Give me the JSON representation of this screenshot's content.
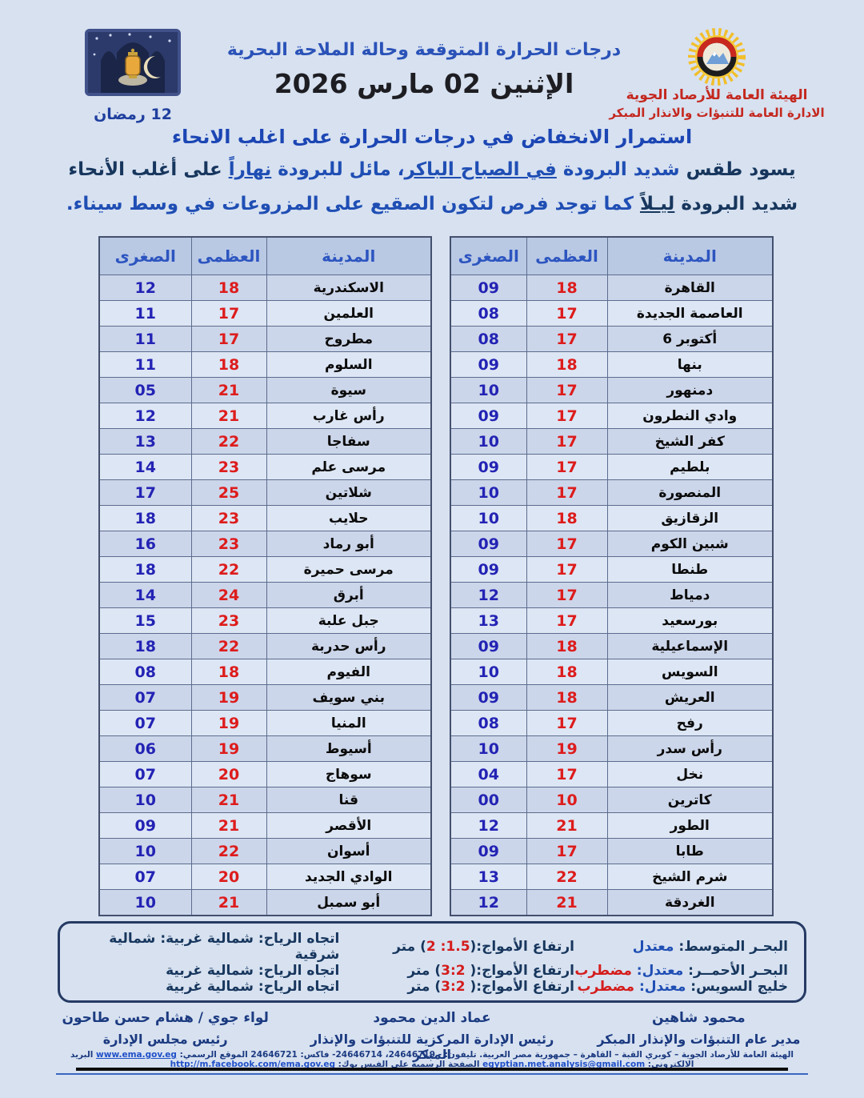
{
  "header": {
    "org_line1": "الهيئة العامة للأرصاد الجوية",
    "org_line2": "الادارة العامة للتنبؤات والانذار المبكر",
    "title": "درجات الحرارة المتوقعة وحالة الملاحة البحرية",
    "date": "الإثنين 02 مارس 2026",
    "hijri": "12 رمضان"
  },
  "summary": {
    "headline": "استمرار الانخفاض في درجات الحرارة على اغلب الانحاء",
    "line1_segments": [
      {
        "t": "يسود طقس ",
        "c": "navy"
      },
      {
        "t": "شديد البرودة",
        "c": "blue"
      },
      {
        "t": " ",
        "c": "blue"
      },
      {
        "t": "في الصباح الباكر",
        "c": "blue",
        "u": true
      },
      {
        "t": "، مائل للبرودة ",
        "c": "blue"
      },
      {
        "t": "نهاراً",
        "c": "blue",
        "u": true
      },
      {
        "t": " على أغلب الأنحاء",
        "c": "navy"
      }
    ],
    "line2_segments": [
      {
        "t": "شديد البرودة ",
        "c": "navy"
      },
      {
        "t": "ليـلاً",
        "c": "navy",
        "u": true
      },
      {
        "t": " كما توجد فرص لتكون الصقيع على المزروعات في وسط سيناء.",
        "c": "blue"
      }
    ]
  },
  "tables": {
    "headers": {
      "city": "المدينة",
      "max": "العظمى",
      "min": "الصغرى"
    },
    "right": {
      "rows": [
        {
          "city": "القاهرة",
          "max": "18",
          "min": "09"
        },
        {
          "city": "العاصمة الجديدة",
          "max": "17",
          "min": "08"
        },
        {
          "city": "أكتوبر 6",
          "max": "17",
          "min": "08"
        },
        {
          "city": "بنها",
          "max": "18",
          "min": "09"
        },
        {
          "city": "دمنهور",
          "max": "17",
          "min": "10"
        },
        {
          "city": "وادي النطرون",
          "max": "17",
          "min": "09"
        },
        {
          "city": "كفر الشيخ",
          "max": "17",
          "min": "10"
        },
        {
          "city": "بلطيم",
          "max": "17",
          "min": "09"
        },
        {
          "city": "المنصورة",
          "max": "17",
          "min": "10"
        },
        {
          "city": "الزقازيق",
          "max": "18",
          "min": "10"
        },
        {
          "city": "شبين الكوم",
          "max": "17",
          "min": "09"
        },
        {
          "city": "طنطا",
          "max": "17",
          "min": "09"
        },
        {
          "city": "دمياط",
          "max": "17",
          "min": "12"
        },
        {
          "city": "بورسعيد",
          "max": "17",
          "min": "13"
        },
        {
          "city": "الإسماعيلية",
          "max": "18",
          "min": "09"
        },
        {
          "city": "السويس",
          "max": "18",
          "min": "10"
        },
        {
          "city": "العريش",
          "max": "18",
          "min": "09"
        },
        {
          "city": "رفح",
          "max": "17",
          "min": "08"
        },
        {
          "city": "رأس سدر",
          "max": "19",
          "min": "10"
        },
        {
          "city": "نخل",
          "max": "17",
          "min": "04"
        },
        {
          "city": "كاترين",
          "max": "10",
          "min": "00"
        },
        {
          "city": "الطور",
          "max": "21",
          "min": "12"
        },
        {
          "city": "طابا",
          "max": "17",
          "min": "09"
        },
        {
          "city": "شرم الشيخ",
          "max": "22",
          "min": "13"
        },
        {
          "city": "الغردقة",
          "max": "21",
          "min": "12"
        }
      ]
    },
    "left": {
      "rows": [
        {
          "city": "الاسكندرية",
          "max": "18",
          "min": "12"
        },
        {
          "city": "العلمين",
          "max": "17",
          "min": "11"
        },
        {
          "city": "مطروح",
          "max": "17",
          "min": "11"
        },
        {
          "city": "السلوم",
          "max": "18",
          "min": "11"
        },
        {
          "city": "سيوة",
          "max": "21",
          "min": "05"
        },
        {
          "city": "رأس غارب",
          "max": "21",
          "min": "12"
        },
        {
          "city": "سفاجا",
          "max": "22",
          "min": "13"
        },
        {
          "city": "مرسى علم",
          "max": "23",
          "min": "14"
        },
        {
          "city": "شلاتين",
          "max": "25",
          "min": "17"
        },
        {
          "city": "حلايب",
          "max": "23",
          "min": "18"
        },
        {
          "city": "أبو رماد",
          "max": "23",
          "min": "16"
        },
        {
          "city": "مرسى حميرة",
          "max": "22",
          "min": "18"
        },
        {
          "city": "أبرق",
          "max": "24",
          "min": "14"
        },
        {
          "city": "جبل علبة",
          "max": "23",
          "min": "15"
        },
        {
          "city": "رأس حدربة",
          "max": "22",
          "min": "18"
        },
        {
          "city": "الفيوم",
          "max": "18",
          "min": "08"
        },
        {
          "city": "بني سويف",
          "max": "19",
          "min": "07"
        },
        {
          "city": "المنيا",
          "max": "19",
          "min": "07"
        },
        {
          "city": "أسيوط",
          "max": "19",
          "min": "06"
        },
        {
          "city": "سوهاج",
          "max": "20",
          "min": "07"
        },
        {
          "city": "قنا",
          "max": "21",
          "min": "10"
        },
        {
          "city": "الأقصر",
          "max": "21",
          "min": "09"
        },
        {
          "city": "أسوان",
          "max": "22",
          "min": "10"
        },
        {
          "city": "الوادي الجديد",
          "max": "20",
          "min": "07"
        },
        {
          "city": "أبو سمبل",
          "max": "21",
          "min": "10"
        }
      ]
    }
  },
  "marine": {
    "rows": [
      {
        "sea": "البحـر المتوسط: ",
        "states": [
          {
            "t": "معتدل",
            "c": "blue"
          }
        ],
        "waves_prefix": "ارتفاع الأمواج:(",
        "waves_num": "1.5: 2",
        "waves_suffix": ") متر",
        "wind": "اتجاه الرياح: شمالية غربية: شمالية شرقية"
      },
      {
        "sea": "البحـر الأحمــر: ",
        "states": [
          {
            "t": "معتدل:",
            "c": "blue"
          },
          {
            "t": " مضطرب",
            "c": "red"
          }
        ],
        "waves_prefix": "ارتفاع الأمواج:( ",
        "waves_num": "3:2",
        "waves_suffix": ") متر",
        "wind": "اتجاه الرياح: شمالية غربية"
      },
      {
        "sea": "خليج السويس: ",
        "states": [
          {
            "t": "معتدل:",
            "c": "blue"
          },
          {
            "t": " مضطرب",
            "c": "red"
          }
        ],
        "waves_prefix": "ارتفاع الأمواج:( ",
        "waves_num": "3:2",
        "waves_suffix": ") متر",
        "wind": "اتجاه الرياح: شمالية غربية"
      }
    ]
  },
  "footer": {
    "signatories": [
      {
        "name": "محمود شاهين",
        "title": "مدير عام التنبؤات والإنذار المبكر"
      },
      {
        "name": "عماد الدين محمود",
        "title": "رئيس الإدارة المركزية للتنبؤات والإنذار المبكر"
      },
      {
        "name": "لواء جوي / هشام حسن طاحون",
        "title": "رئيس مجلس الإدارة"
      }
    ],
    "contact_segments": [
      {
        "t": "الهيئة العامة للأرصاد الجوية – كوبري القبة – القاهرة – جمهورية مصر العربية. تليفون: - 24646719، 24646714- فاكس: 24646721 ",
        "link": false
      },
      {
        "t": "الموقع الرسمي: ",
        "link": false
      },
      {
        "t": "www.ema.gov.eg",
        "link": true
      },
      {
        "t": " البريد الالكتروني: ",
        "link": false
      },
      {
        "t": "egyptian.met.analysis@gmail.com",
        "link": true
      },
      {
        "t": " الصفحة الرسمية على الفيس بوك: ",
        "link": false
      },
      {
        "t": "http://m.facebook.com/ema.gov.eg",
        "link": true
      }
    ]
  },
  "colors": {
    "page_bg": "#d7e1f0",
    "table_header_bg": "#b9c9e4",
    "row_odd": "#ccd6ea",
    "row_even": "#dde6f4",
    "min_blue": "#2323b4",
    "max_red": "#dd1c1c",
    "org_red": "#c4281f",
    "headline_blue": "#1c46b4",
    "navy": "#17365d"
  }
}
